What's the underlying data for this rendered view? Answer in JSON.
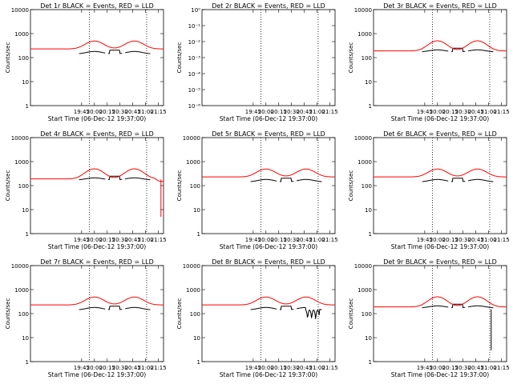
{
  "figure": {
    "xlabel": "Start Time (06-Dec-12 19:37:00)",
    "ylabel": "Counts/sec",
    "xticks": [
      "19:45",
      "20:00",
      "20:15",
      "20:30",
      "20:45",
      "21:00",
      "21:15"
    ],
    "colors": {
      "events": "#000000",
      "lld": "#ff0000"
    }
  },
  "chart_data": [
    {
      "type": "line",
      "title": "Det 1r BLACK = Events, RED = LLD",
      "ylim": [
        1,
        10000
      ],
      "yscale": "log",
      "yticks": [
        "1",
        "10",
        "100",
        "1000",
        "10000"
      ],
      "series": [
        {
          "name": "BLACK = Events",
          "key": "events",
          "variant": "std"
        },
        {
          "name": "RED = LLD",
          "key": "lld",
          "variant": "std"
        }
      ]
    },
    {
      "type": "line",
      "title": "Det 2r BLACK = Events, RED = LLD",
      "ylim": [
        1e-06,
        1
      ],
      "yscale": "log",
      "yticks": [
        "10⁻⁶",
        "10⁻⁵",
        "10⁻⁴",
        "10⁻³",
        "10⁻²",
        "10⁻¹",
        "10⁰"
      ],
      "series": []
    },
    {
      "type": "line",
      "title": "Det 3r BLACK = Events, RED = LLD",
      "ylim": [
        1,
        10000
      ],
      "yscale": "log",
      "yticks": [
        "1",
        "10",
        "100",
        "1000",
        "10000"
      ],
      "series": [
        {
          "name": "BLACK = Events",
          "key": "events",
          "variant": "d3"
        },
        {
          "name": "RED = LLD",
          "key": "lld",
          "variant": "d3"
        }
      ]
    },
    {
      "type": "line",
      "title": "Det 4r BLACK = Events, RED = LLD",
      "ylim": [
        1,
        10000
      ],
      "yscale": "log",
      "yticks": [
        "1",
        "10",
        "100",
        "1000",
        "10000"
      ],
      "series": [
        {
          "name": "BLACK = Events",
          "key": "events",
          "variant": "d4"
        },
        {
          "name": "RED = LLD",
          "key": "lld",
          "variant": "d4"
        }
      ]
    },
    {
      "type": "line",
      "title": "Det 5r BLACK = Events, RED = LLD",
      "ylim": [
        1,
        10000
      ],
      "yscale": "log",
      "yticks": [
        "1",
        "10",
        "100",
        "1000",
        "10000"
      ],
      "series": [
        {
          "name": "BLACK = Events",
          "key": "events",
          "variant": "std"
        },
        {
          "name": "RED = LLD",
          "key": "lld",
          "variant": "std"
        }
      ]
    },
    {
      "type": "line",
      "title": "Det 6r BLACK = Events, RED = LLD",
      "ylim": [
        1,
        10000
      ],
      "yscale": "log",
      "yticks": [
        "1",
        "10",
        "100",
        "1000",
        "10000"
      ],
      "series": [
        {
          "name": "BLACK = Events",
          "key": "events",
          "variant": "std"
        },
        {
          "name": "RED = LLD",
          "key": "lld",
          "variant": "std"
        }
      ]
    },
    {
      "type": "line",
      "title": "Det 7r BLACK = Events, RED = LLD",
      "ylim": [
        1,
        10000
      ],
      "yscale": "log",
      "yticks": [
        "1",
        "10",
        "100",
        "1000",
        "10000"
      ],
      "series": [
        {
          "name": "BLACK = Events",
          "key": "events",
          "variant": "std"
        },
        {
          "name": "RED = LLD",
          "key": "lld",
          "variant": "std"
        }
      ]
    },
    {
      "type": "line",
      "title": "Det 8r BLACK = Events, RED = LLD",
      "ylim": [
        1,
        10000
      ],
      "yscale": "log",
      "yticks": [
        "1",
        "10",
        "100",
        "1000",
        "10000"
      ],
      "series": [
        {
          "name": "BLACK = Events",
          "key": "events",
          "variant": "d8"
        },
        {
          "name": "RED = LLD",
          "key": "lld",
          "variant": "std"
        }
      ]
    },
    {
      "type": "line",
      "title": "Det 9r BLACK = Events, RED = LLD",
      "ylim": [
        1,
        10000
      ],
      "yscale": "log",
      "yticks": [
        "1",
        "10",
        "100",
        "1000",
        "10000"
      ],
      "series": [
        {
          "name": "BLACK = Events",
          "key": "events",
          "variant": "d9"
        },
        {
          "name": "RED = LLD",
          "key": "lld",
          "variant": "d3"
        }
      ]
    }
  ]
}
